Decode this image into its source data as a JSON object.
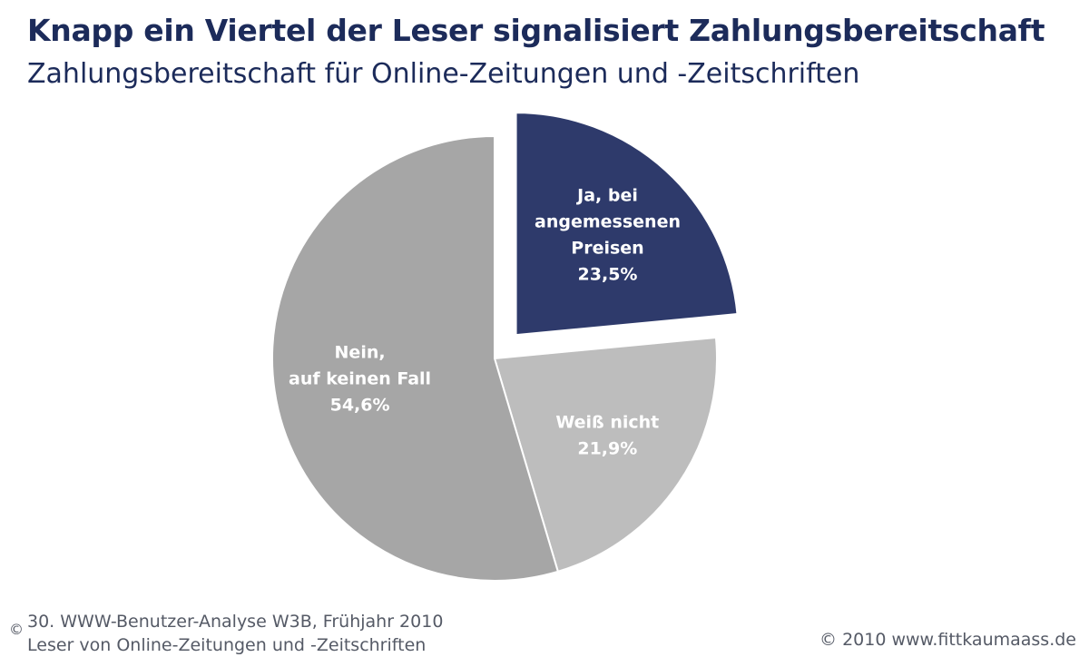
{
  "header": {
    "title": "Knapp ein Viertel der Leser signalisiert Zahlungsbereitschaft",
    "subtitle": "Zahlungsbereitschaft für Online-Zeitungen und -Zeitschriften"
  },
  "footer": {
    "source_line1": "30. WWW-Benutzer-Analyse W3B, Frühjahr 2010",
    "source_line2": "Leser von Online-Zeitungen und -Zeitschriften",
    "copyright": "© 2010 www.fittkaumaass.de",
    "corner_mark": "©"
  },
  "chart_data": {
    "type": "pie",
    "title": "Zahlungsbereitschaft für Online-Zeitungen und -Zeitschriften",
    "slices": [
      {
        "label_lines": [
          "Ja, bei",
          "angemessenen",
          "Preisen"
        ],
        "value": 23.5,
        "value_label": "23,5%",
        "color": "#2e3a6b",
        "exploded": true
      },
      {
        "label_lines": [
          "Weiß nicht"
        ],
        "value": 21.9,
        "value_label": "21,9%",
        "color": "#bdbdbd",
        "exploded": false
      },
      {
        "label_lines": [
          "Nein,",
          "auf keinen Fall"
        ],
        "value": 54.6,
        "value_label": "54,6%",
        "color": "#a6a6a6",
        "exploded": false
      }
    ],
    "start_angle_deg": 0,
    "direction": "clockwise"
  }
}
